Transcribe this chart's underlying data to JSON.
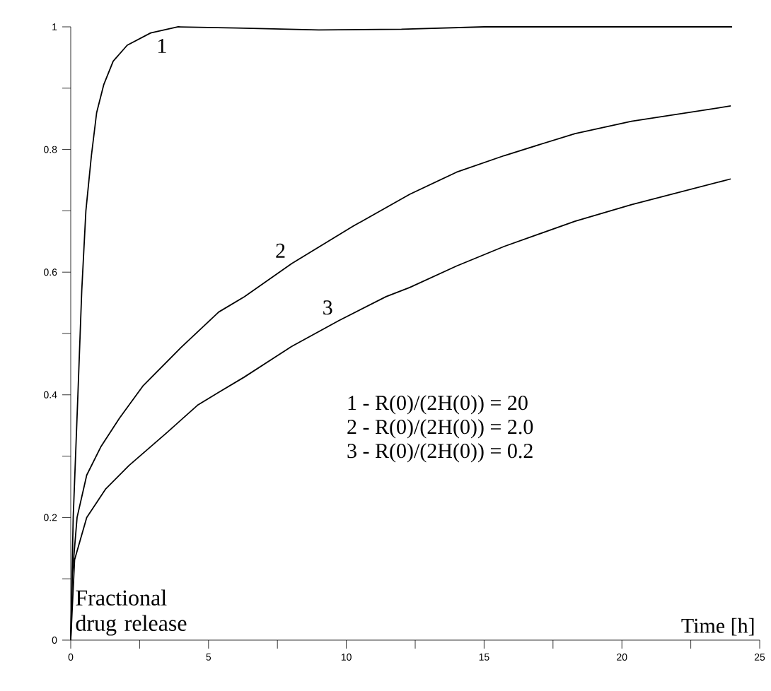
{
  "chart_data": {
    "type": "line",
    "xlabel": "Time [h]",
    "ylabel": "Fractional drug release",
    "xlim": [
      0,
      25
    ],
    "ylim": [
      0,
      1
    ],
    "xticks": [
      0,
      {
        "value": 2.5,
        "label": null
      },
      5,
      {
        "value": 7.5,
        "label": null
      },
      10,
      {
        "value": 12.5,
        "label": null
      },
      15,
      {
        "value": 17.5,
        "label": null
      },
      20,
      {
        "value": 22.5,
        "label": null
      },
      25
    ],
    "yticks": [
      0,
      {
        "value": 0.1,
        "label": null
      },
      0.2,
      {
        "value": 0.3,
        "label": null
      },
      0.4,
      {
        "value": 0.5,
        "label": null
      },
      0.6,
      {
        "value": 0.7,
        "label": null
      },
      0.8,
      {
        "value": 0.9,
        "label": null
      },
      1
    ],
    "grid": false,
    "marker": "none",
    "line_style": "solid",
    "annotations": [
      "1 - R(0)/(2H(0)) = 20",
      "2 - R(0)/(2H(0)) = 2.0",
      "3 - R(0)/(2H(0)) = 0.2"
    ],
    "series": [
      {
        "name": "1",
        "color": "#000000",
        "x": [
          0,
          0.09,
          0.26,
          0.4,
          0.55,
          0.75,
          0.94,
          1.2,
          1.54,
          2.05,
          2.9,
          3.9,
          6,
          9,
          12,
          15,
          20,
          24
        ],
        "values": [
          0,
          0.2,
          0.4,
          0.57,
          0.7,
          0.79,
          0.86,
          0.906,
          0.944,
          0.97,
          0.99,
          1.0,
          0.998,
          0.995,
          0.996,
          1.0,
          1.0,
          1.0
        ]
      },
      {
        "name": "2",
        "color": "#000000",
        "x": [
          0,
          0.06,
          0.23,
          0.58,
          1.09,
          1.77,
          2.63,
          4.0,
          5.37,
          6.3,
          8.02,
          10.25,
          12.3,
          14.0,
          15.73,
          18.3,
          20.35,
          23.95
        ],
        "values": [
          0,
          0.108,
          0.2,
          0.269,
          0.315,
          0.362,
          0.415,
          0.477,
          0.535,
          0.56,
          0.614,
          0.675,
          0.727,
          0.763,
          0.79,
          0.826,
          0.846,
          0.871
        ]
      },
      {
        "name": "3",
        "color": "#000000",
        "x": [
          0,
          0.14,
          0.58,
          1.26,
          2.12,
          3.48,
          4.6,
          5.37,
          6.3,
          8.02,
          9.73,
          11.44,
          12.3,
          14.0,
          15.73,
          18.3,
          20.35,
          23.95
        ],
        "values": [
          0,
          0.131,
          0.2,
          0.246,
          0.285,
          0.338,
          0.383,
          0.404,
          0.429,
          0.479,
          0.521,
          0.56,
          0.575,
          0.61,
          0.642,
          0.683,
          0.71,
          0.752
        ]
      }
    ]
  }
}
